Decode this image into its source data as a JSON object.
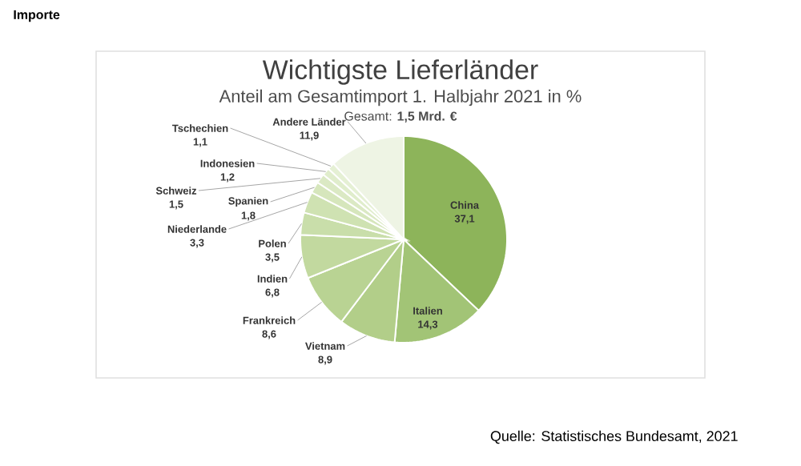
{
  "chart_data": {
    "type": "pie",
    "title": "Wichtigste Lieferländer",
    "subtitle": "Anteil am Gesamtimport 1. Halbjahr 2021 in %",
    "categories": [
      "China",
      "Italien",
      "Vietnam",
      "Frankreich",
      "Indien",
      "Polen",
      "Niederlande",
      "Spanien",
      "Schweiz",
      "Indonesien",
      "Tschechien",
      "Andere Länder"
    ],
    "values": [
      37.1,
      14.3,
      8.9,
      8.6,
      6.8,
      3.5,
      3.3,
      1.8,
      1.5,
      1.2,
      1.1,
      11.9
    ],
    "value_labels": [
      "37,1",
      "14,3",
      "8,9",
      "8,6",
      "6,8",
      "3,5",
      "3,3",
      "1,8",
      "1,5",
      "1,2",
      "1,1",
      "11,9"
    ],
    "colors": [
      "#8db45a",
      "#a2c476",
      "#b2ce89",
      "#b9d393",
      "#c2d99f",
      "#c9deaa",
      "#cfe2b2",
      "#d6e6bc",
      "#dbe9c4",
      "#e0edcc",
      "#e5f0d4",
      "#eef4e4"
    ],
    "annotations": [
      "Importe",
      "Gesamt: **1,5 Mrd. €**",
      "Quelle: Statistisches Bundesamt, 2021"
    ]
  }
}
